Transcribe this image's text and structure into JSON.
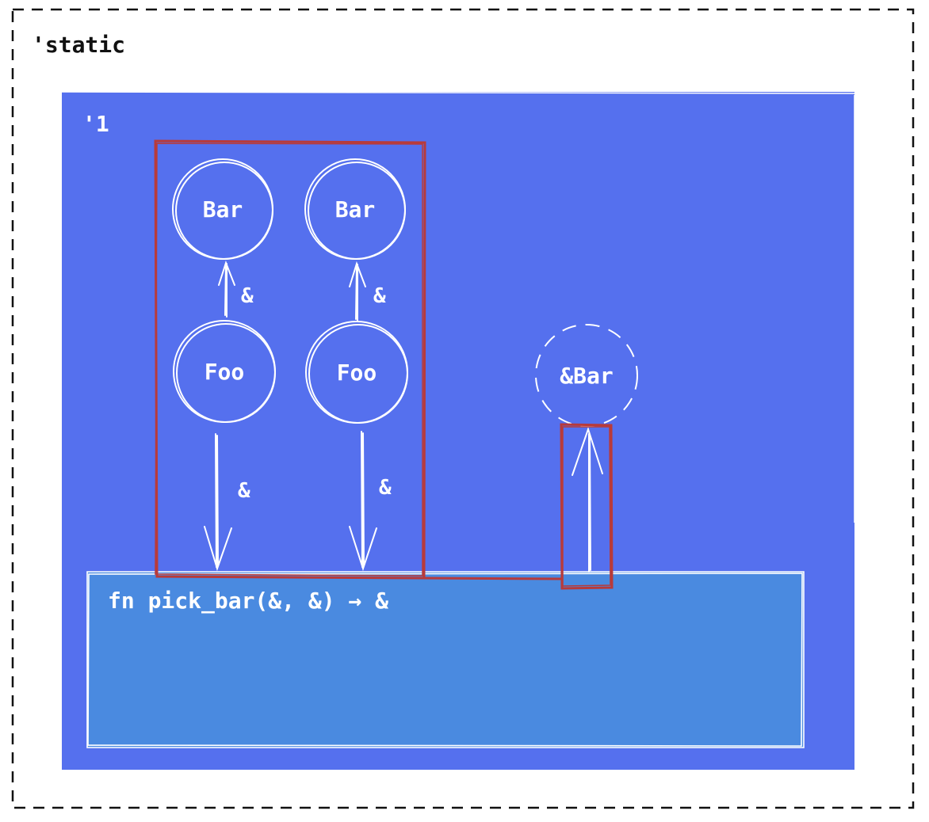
{
  "scopes": {
    "outer_label": "'static",
    "inner_label": "'1"
  },
  "nodes": {
    "bar_1": "Bar",
    "bar_2": "Bar",
    "foo_1": "Foo",
    "foo_2": "Foo",
    "result": "&Bar"
  },
  "edges": {
    "foo1_to_bar1": "&",
    "foo2_to_bar2": "&",
    "foo1_to_fn": "&",
    "foo2_to_fn": "&"
  },
  "function": {
    "signature": "fn pick_bar(&, &) → &"
  },
  "colors": {
    "inner_scope": "#5570ee",
    "function_box": "#4a8ae0",
    "highlight": "#b83a3a",
    "ink": "#ffffff"
  }
}
